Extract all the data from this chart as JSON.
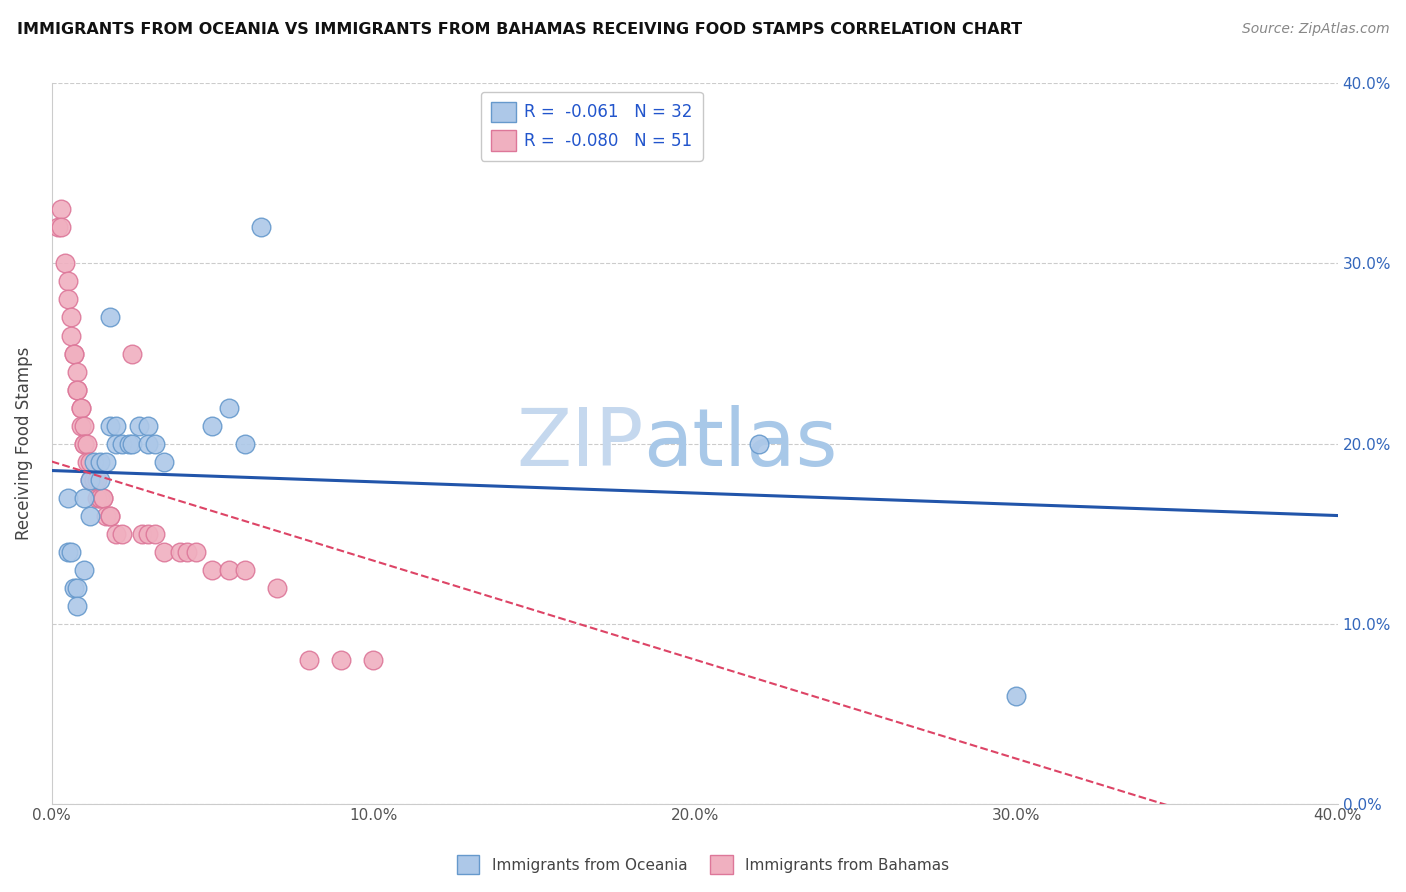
{
  "title": "IMMIGRANTS FROM OCEANIA VS IMMIGRANTS FROM BAHAMAS RECEIVING FOOD STAMPS CORRELATION CHART",
  "source": "Source: ZipAtlas.com",
  "ylabel": "Receiving Food Stamps",
  "xlim": [
    0.0,
    0.4
  ],
  "ylim": [
    0.0,
    0.4
  ],
  "yticks": [
    0.0,
    0.1,
    0.2,
    0.3,
    0.4
  ],
  "xticks": [
    0.0,
    0.1,
    0.2,
    0.3,
    0.4
  ],
  "oceania_color": "#adc8e8",
  "oceania_edge": "#6699cc",
  "bahamas_color": "#f0b0c0",
  "bahamas_edge": "#dd7799",
  "trendline_oceania_color": "#2255aa",
  "trendline_bahamas_color": "#dd4466",
  "watermark_color": "#d0e4f4",
  "oceania_trendline": [
    [
      0.0,
      0.185
    ],
    [
      0.4,
      0.16
    ]
  ],
  "bahamas_trendline": [
    [
      0.0,
      0.19
    ],
    [
      0.4,
      -0.03
    ]
  ],
  "oceania_points": [
    [
      0.005,
      0.17
    ],
    [
      0.005,
      0.14
    ],
    [
      0.006,
      0.14
    ],
    [
      0.007,
      0.12
    ],
    [
      0.008,
      0.12
    ],
    [
      0.008,
      0.11
    ],
    [
      0.01,
      0.13
    ],
    [
      0.01,
      0.17
    ],
    [
      0.012,
      0.18
    ],
    [
      0.012,
      0.16
    ],
    [
      0.013,
      0.19
    ],
    [
      0.015,
      0.19
    ],
    [
      0.015,
      0.18
    ],
    [
      0.017,
      0.19
    ],
    [
      0.018,
      0.21
    ],
    [
      0.018,
      0.27
    ],
    [
      0.02,
      0.21
    ],
    [
      0.02,
      0.2
    ],
    [
      0.022,
      0.2
    ],
    [
      0.024,
      0.2
    ],
    [
      0.025,
      0.2
    ],
    [
      0.027,
      0.21
    ],
    [
      0.03,
      0.21
    ],
    [
      0.03,
      0.2
    ],
    [
      0.032,
      0.2
    ],
    [
      0.035,
      0.19
    ],
    [
      0.05,
      0.21
    ],
    [
      0.055,
      0.22
    ],
    [
      0.06,
      0.2
    ],
    [
      0.065,
      0.32
    ],
    [
      0.22,
      0.2
    ],
    [
      0.3,
      0.06
    ]
  ],
  "bahamas_points": [
    [
      0.002,
      0.32
    ],
    [
      0.003,
      0.33
    ],
    [
      0.003,
      0.32
    ],
    [
      0.004,
      0.3
    ],
    [
      0.005,
      0.29
    ],
    [
      0.005,
      0.28
    ],
    [
      0.006,
      0.27
    ],
    [
      0.006,
      0.26
    ],
    [
      0.007,
      0.25
    ],
    [
      0.007,
      0.25
    ],
    [
      0.008,
      0.24
    ],
    [
      0.008,
      0.23
    ],
    [
      0.008,
      0.23
    ],
    [
      0.009,
      0.22
    ],
    [
      0.009,
      0.22
    ],
    [
      0.009,
      0.21
    ],
    [
      0.01,
      0.21
    ],
    [
      0.01,
      0.2
    ],
    [
      0.01,
      0.2
    ],
    [
      0.011,
      0.2
    ],
    [
      0.011,
      0.19
    ],
    [
      0.012,
      0.19
    ],
    [
      0.012,
      0.18
    ],
    [
      0.013,
      0.18
    ],
    [
      0.013,
      0.18
    ],
    [
      0.014,
      0.18
    ],
    [
      0.014,
      0.17
    ],
    [
      0.015,
      0.17
    ],
    [
      0.015,
      0.17
    ],
    [
      0.016,
      0.17
    ],
    [
      0.016,
      0.17
    ],
    [
      0.017,
      0.16
    ],
    [
      0.018,
      0.16
    ],
    [
      0.018,
      0.16
    ],
    [
      0.02,
      0.15
    ],
    [
      0.022,
      0.15
    ],
    [
      0.025,
      0.25
    ],
    [
      0.028,
      0.15
    ],
    [
      0.03,
      0.15
    ],
    [
      0.032,
      0.15
    ],
    [
      0.035,
      0.14
    ],
    [
      0.04,
      0.14
    ],
    [
      0.042,
      0.14
    ],
    [
      0.045,
      0.14
    ],
    [
      0.05,
      0.13
    ],
    [
      0.055,
      0.13
    ],
    [
      0.06,
      0.13
    ],
    [
      0.07,
      0.12
    ],
    [
      0.08,
      0.08
    ],
    [
      0.09,
      0.08
    ],
    [
      0.1,
      0.08
    ]
  ]
}
